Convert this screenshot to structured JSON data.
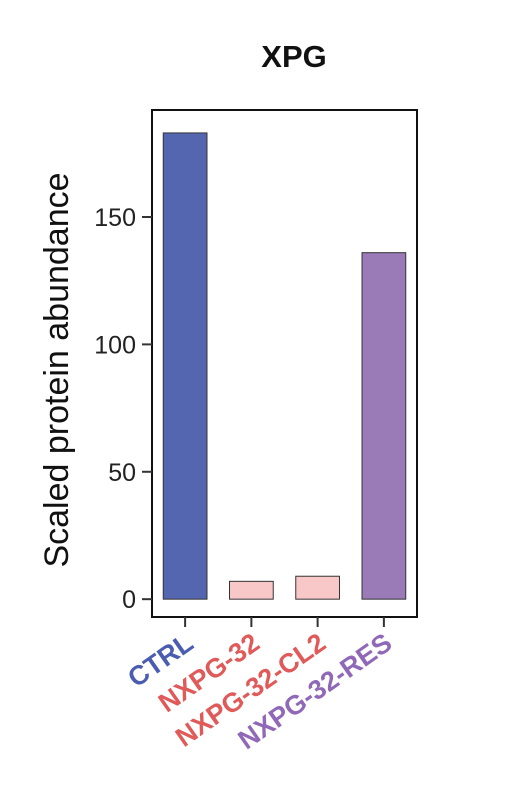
{
  "chart_data": {
    "type": "bar",
    "title": "XPG",
    "xlabel": "",
    "ylabel": "Scaled protein abundance",
    "categories": [
      "CTRL",
      "NXPG-32",
      "NXPG-32-CL2",
      "NXPG-32-RES"
    ],
    "values": [
      183,
      7,
      9,
      136
    ],
    "ylim": [
      -7,
      192
    ],
    "yticks": [
      0,
      50,
      100,
      150
    ],
    "ytick_labels": [
      "0",
      "50",
      "100",
      "150"
    ],
    "bar_colors": [
      "#5566b0",
      "#f8c8c8",
      "#f8c8c8",
      "#9a7bb8"
    ],
    "label_colors": [
      "#4a5db0",
      "#e05a5a",
      "#e05a5a",
      "#9068b8"
    ],
    "grid": false,
    "legend": "none"
  }
}
